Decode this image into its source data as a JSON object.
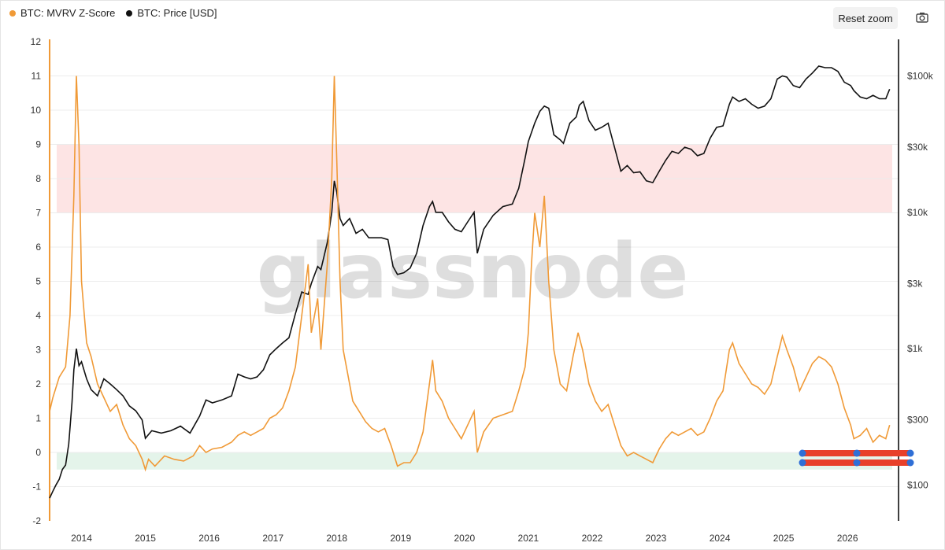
{
  "legend": {
    "zscore_label": "BTC: MVRV Z-Score",
    "price_label": "BTC: Price [USD]"
  },
  "toolbar": {
    "reset_zoom_label": "Reset zoom",
    "camera_icon": "camera-icon"
  },
  "watermark": "glassnode",
  "colors": {
    "zscore": "#f09a37",
    "price": "#111111",
    "red_band": "#fde4e4",
    "green_band": "#e4f4ea",
    "slider_red": "#e8402a",
    "slider_blue": "#2f6fd6"
  },
  "chart_data": {
    "type": "line",
    "x_ticks": [
      "2014",
      "2015",
      "2016",
      "2017",
      "2018",
      "2019",
      "2020",
      "2021",
      "2022",
      "2023",
      "2024",
      "2025",
      "2026"
    ],
    "x_range": [
      2013.5,
      2026.8
    ],
    "y_left_ticks": [
      "12",
      "11",
      "10",
      "9",
      "8",
      "7",
      "6",
      "5",
      "4",
      "3",
      "2",
      "1",
      "0",
      "-1",
      "-2"
    ],
    "y_left_range": [
      -2,
      12
    ],
    "y_right_ticks": [
      "$100k",
      "$30k",
      "$10k",
      "$3k",
      "$1k",
      "$300",
      "$100"
    ],
    "y_right_values": [
      100000,
      30000,
      10000,
      3000,
      1000,
      300,
      100
    ],
    "y_right_scale": "log",
    "bands": [
      {
        "name": "red",
        "from": 7,
        "to": 9
      },
      {
        "name": "green",
        "from": -0.5,
        "to": 0
      }
    ],
    "series": [
      {
        "name": "BTC: MVRV Z-Score",
        "axis": "left",
        "points": [
          [
            2013.5,
            1.2
          ],
          [
            2013.55,
            1.6
          ],
          [
            2013.65,
            2.2
          ],
          [
            2013.75,
            2.5
          ],
          [
            2013.82,
            4.0
          ],
          [
            2013.88,
            7.5
          ],
          [
            2013.92,
            11.0
          ],
          [
            2013.96,
            9.0
          ],
          [
            2014.0,
            5.0
          ],
          [
            2014.08,
            3.2
          ],
          [
            2014.15,
            2.8
          ],
          [
            2014.25,
            2.0
          ],
          [
            2014.35,
            1.6
          ],
          [
            2014.45,
            1.2
          ],
          [
            2014.55,
            1.4
          ],
          [
            2014.65,
            0.8
          ],
          [
            2014.75,
            0.4
          ],
          [
            2014.85,
            0.2
          ],
          [
            2014.95,
            -0.2
          ],
          [
            2015.0,
            -0.5
          ],
          [
            2015.05,
            -0.2
          ],
          [
            2015.15,
            -0.4
          ],
          [
            2015.3,
            -0.1
          ],
          [
            2015.45,
            -0.2
          ],
          [
            2015.6,
            -0.25
          ],
          [
            2015.75,
            -0.1
          ],
          [
            2015.85,
            0.2
          ],
          [
            2015.95,
            0.0
          ],
          [
            2016.05,
            0.1
          ],
          [
            2016.2,
            0.15
          ],
          [
            2016.35,
            0.3
          ],
          [
            2016.45,
            0.5
          ],
          [
            2016.55,
            0.6
          ],
          [
            2016.65,
            0.5
          ],
          [
            2016.75,
            0.6
          ],
          [
            2016.85,
            0.7
          ],
          [
            2016.95,
            1.0
          ],
          [
            2017.05,
            1.1
          ],
          [
            2017.15,
            1.3
          ],
          [
            2017.25,
            1.8
          ],
          [
            2017.35,
            2.5
          ],
          [
            2017.45,
            4.0
          ],
          [
            2017.55,
            5.5
          ],
          [
            2017.6,
            3.5
          ],
          [
            2017.7,
            4.5
          ],
          [
            2017.75,
            3.0
          ],
          [
            2017.85,
            5.5
          ],
          [
            2017.92,
            8.0
          ],
          [
            2017.96,
            11.0
          ],
          [
            2018.0,
            8.5
          ],
          [
            2018.05,
            5.0
          ],
          [
            2018.1,
            3.0
          ],
          [
            2018.15,
            2.5
          ],
          [
            2018.25,
            1.5
          ],
          [
            2018.35,
            1.2
          ],
          [
            2018.45,
            0.9
          ],
          [
            2018.55,
            0.7
          ],
          [
            2018.65,
            0.6
          ],
          [
            2018.75,
            0.7
          ],
          [
            2018.85,
            0.2
          ],
          [
            2018.95,
            -0.4
          ],
          [
            2019.05,
            -0.3
          ],
          [
            2019.15,
            -0.3
          ],
          [
            2019.25,
            0.0
          ],
          [
            2019.35,
            0.6
          ],
          [
            2019.45,
            2.0
          ],
          [
            2019.5,
            2.7
          ],
          [
            2019.55,
            1.8
          ],
          [
            2019.65,
            1.5
          ],
          [
            2019.75,
            1.0
          ],
          [
            2019.85,
            0.7
          ],
          [
            2019.95,
            0.4
          ],
          [
            2020.05,
            0.8
          ],
          [
            2020.15,
            1.2
          ],
          [
            2020.2,
            0.0
          ],
          [
            2020.3,
            0.6
          ],
          [
            2020.45,
            1.0
          ],
          [
            2020.6,
            1.1
          ],
          [
            2020.75,
            1.2
          ],
          [
            2020.85,
            1.8
          ],
          [
            2020.95,
            2.5
          ],
          [
            2021.0,
            3.5
          ],
          [
            2021.05,
            5.5
          ],
          [
            2021.1,
            7.0
          ],
          [
            2021.18,
            6.0
          ],
          [
            2021.25,
            7.5
          ],
          [
            2021.32,
            5.0
          ],
          [
            2021.4,
            3.0
          ],
          [
            2021.5,
            2.0
          ],
          [
            2021.6,
            1.8
          ],
          [
            2021.7,
            2.8
          ],
          [
            2021.78,
            3.5
          ],
          [
            2021.85,
            3.0
          ],
          [
            2021.95,
            2.0
          ],
          [
            2022.05,
            1.5
          ],
          [
            2022.15,
            1.2
          ],
          [
            2022.25,
            1.4
          ],
          [
            2022.35,
            0.8
          ],
          [
            2022.45,
            0.2
          ],
          [
            2022.55,
            -0.1
          ],
          [
            2022.65,
            0.0
          ],
          [
            2022.75,
            -0.1
          ],
          [
            2022.85,
            -0.2
          ],
          [
            2022.95,
            -0.3
          ],
          [
            2023.05,
            0.1
          ],
          [
            2023.15,
            0.4
          ],
          [
            2023.25,
            0.6
          ],
          [
            2023.35,
            0.5
          ],
          [
            2023.45,
            0.6
          ],
          [
            2023.55,
            0.7
          ],
          [
            2023.65,
            0.5
          ],
          [
            2023.75,
            0.6
          ],
          [
            2023.85,
            1.0
          ],
          [
            2023.95,
            1.5
          ],
          [
            2024.05,
            1.8
          ],
          [
            2024.15,
            3.0
          ],
          [
            2024.2,
            3.2
          ],
          [
            2024.3,
            2.6
          ],
          [
            2024.4,
            2.3
          ],
          [
            2024.5,
            2.0
          ],
          [
            2024.6,
            1.9
          ],
          [
            2024.7,
            1.7
          ],
          [
            2024.8,
            2.0
          ],
          [
            2024.9,
            2.8
          ],
          [
            2024.98,
            3.4
          ],
          [
            2025.05,
            3.0
          ],
          [
            2025.15,
            2.5
          ],
          [
            2025.25,
            1.8
          ],
          [
            2025.35,
            2.2
          ],
          [
            2025.45,
            2.6
          ],
          [
            2025.55,
            2.8
          ],
          [
            2025.65,
            2.7
          ],
          [
            2025.75,
            2.5
          ],
          [
            2025.85,
            2.0
          ],
          [
            2025.95,
            1.3
          ],
          [
            2026.05,
            0.8
          ],
          [
            2026.1,
            0.4
          ],
          [
            2026.2,
            0.5
          ],
          [
            2026.3,
            0.7
          ],
          [
            2026.4,
            0.3
          ],
          [
            2026.5,
            0.5
          ],
          [
            2026.6,
            0.4
          ],
          [
            2026.66,
            0.8
          ]
        ]
      },
      {
        "name": "BTC: Price [USD]",
        "axis": "right",
        "points": [
          [
            2013.5,
            80
          ],
          [
            2013.55,
            90
          ],
          [
            2013.6,
            100
          ],
          [
            2013.65,
            110
          ],
          [
            2013.7,
            130
          ],
          [
            2013.75,
            140
          ],
          [
            2013.8,
            200
          ],
          [
            2013.85,
            400
          ],
          [
            2013.88,
            700
          ],
          [
            2013.92,
            1000
          ],
          [
            2013.96,
            750
          ],
          [
            2014.0,
            800
          ],
          [
            2014.08,
            600
          ],
          [
            2014.15,
            500
          ],
          [
            2014.25,
            450
          ],
          [
            2014.35,
            600
          ],
          [
            2014.45,
            550
          ],
          [
            2014.55,
            500
          ],
          [
            2014.65,
            450
          ],
          [
            2014.75,
            380
          ],
          [
            2014.85,
            350
          ],
          [
            2014.95,
            300
          ],
          [
            2015.0,
            220
          ],
          [
            2015.1,
            250
          ],
          [
            2015.25,
            240
          ],
          [
            2015.4,
            250
          ],
          [
            2015.55,
            270
          ],
          [
            2015.7,
            240
          ],
          [
            2015.85,
            320
          ],
          [
            2015.95,
            420
          ],
          [
            2016.05,
            400
          ],
          [
            2016.2,
            420
          ],
          [
            2016.35,
            450
          ],
          [
            2016.45,
            650
          ],
          [
            2016.55,
            620
          ],
          [
            2016.65,
            600
          ],
          [
            2016.75,
            620
          ],
          [
            2016.85,
            700
          ],
          [
            2016.95,
            900
          ],
          [
            2017.05,
            1000
          ],
          [
            2017.15,
            1100
          ],
          [
            2017.25,
            1200
          ],
          [
            2017.35,
            1800
          ],
          [
            2017.45,
            2600
          ],
          [
            2017.55,
            2500
          ],
          [
            2017.6,
            3000
          ],
          [
            2017.7,
            4000
          ],
          [
            2017.75,
            3800
          ],
          [
            2017.85,
            6000
          ],
          [
            2017.92,
            10000
          ],
          [
            2017.96,
            17000
          ],
          [
            2018.0,
            14000
          ],
          [
            2018.05,
            9000
          ],
          [
            2018.1,
            8000
          ],
          [
            2018.2,
            9000
          ],
          [
            2018.3,
            7000
          ],
          [
            2018.4,
            7500
          ],
          [
            2018.5,
            6500
          ],
          [
            2018.6,
            6500
          ],
          [
            2018.7,
            6500
          ],
          [
            2018.8,
            6300
          ],
          [
            2018.88,
            4000
          ],
          [
            2018.95,
            3500
          ],
          [
            2019.05,
            3600
          ],
          [
            2019.15,
            3900
          ],
          [
            2019.25,
            5000
          ],
          [
            2019.35,
            8000
          ],
          [
            2019.45,
            11000
          ],
          [
            2019.5,
            12000
          ],
          [
            2019.55,
            10000
          ],
          [
            2019.65,
            10000
          ],
          [
            2019.75,
            8500
          ],
          [
            2019.85,
            7500
          ],
          [
            2019.95,
            7200
          ],
          [
            2020.05,
            8500
          ],
          [
            2020.15,
            10000
          ],
          [
            2020.2,
            5000
          ],
          [
            2020.3,
            7500
          ],
          [
            2020.45,
            9500
          ],
          [
            2020.6,
            11000
          ],
          [
            2020.75,
            11500
          ],
          [
            2020.85,
            15000
          ],
          [
            2020.95,
            25000
          ],
          [
            2021.0,
            33000
          ],
          [
            2021.1,
            45000
          ],
          [
            2021.18,
            55000
          ],
          [
            2021.25,
            60000
          ],
          [
            2021.32,
            58000
          ],
          [
            2021.4,
            37000
          ],
          [
            2021.5,
            34000
          ],
          [
            2021.55,
            32000
          ],
          [
            2021.65,
            45000
          ],
          [
            2021.75,
            50000
          ],
          [
            2021.8,
            61000
          ],
          [
            2021.86,
            65000
          ],
          [
            2021.95,
            47000
          ],
          [
            2022.05,
            40000
          ],
          [
            2022.15,
            42000
          ],
          [
            2022.25,
            45000
          ],
          [
            2022.35,
            30000
          ],
          [
            2022.45,
            20000
          ],
          [
            2022.55,
            22000
          ],
          [
            2022.65,
            19500
          ],
          [
            2022.75,
            19800
          ],
          [
            2022.85,
            17000
          ],
          [
            2022.95,
            16500
          ],
          [
            2023.05,
            20000
          ],
          [
            2023.15,
            24000
          ],
          [
            2023.25,
            28000
          ],
          [
            2023.35,
            27000
          ],
          [
            2023.45,
            30000
          ],
          [
            2023.55,
            29000
          ],
          [
            2023.65,
            26000
          ],
          [
            2023.75,
            27000
          ],
          [
            2023.85,
            35000
          ],
          [
            2023.95,
            42000
          ],
          [
            2024.05,
            43000
          ],
          [
            2024.15,
            62000
          ],
          [
            2024.2,
            70000
          ],
          [
            2024.3,
            65000
          ],
          [
            2024.4,
            68000
          ],
          [
            2024.5,
            62000
          ],
          [
            2024.6,
            58000
          ],
          [
            2024.7,
            60000
          ],
          [
            2024.8,
            68000
          ],
          [
            2024.9,
            95000
          ],
          [
            2024.98,
            100000
          ],
          [
            2025.05,
            98000
          ],
          [
            2025.15,
            85000
          ],
          [
            2025.25,
            82000
          ],
          [
            2025.35,
            95000
          ],
          [
            2025.45,
            105000
          ],
          [
            2025.55,
            118000
          ],
          [
            2025.65,
            115000
          ],
          [
            2025.75,
            115000
          ],
          [
            2025.85,
            108000
          ],
          [
            2025.95,
            90000
          ],
          [
            2026.05,
            85000
          ],
          [
            2026.1,
            78000
          ],
          [
            2026.2,
            70000
          ],
          [
            2026.3,
            68000
          ],
          [
            2026.4,
            72000
          ],
          [
            2026.5,
            68000
          ],
          [
            2026.6,
            68000
          ],
          [
            2026.66,
            80000
          ]
        ]
      }
    ],
    "legend_position": "top-left",
    "grid": true
  }
}
